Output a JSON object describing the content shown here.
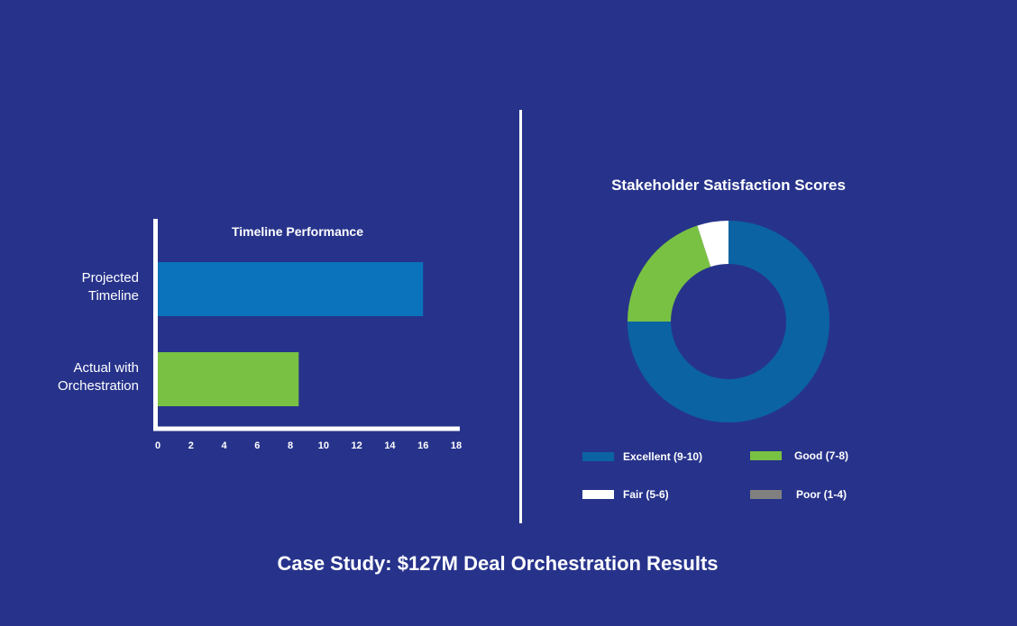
{
  "footer": {
    "title": "Case Study: $127M Deal Orchestration Results"
  },
  "colors": {
    "background": "#27338b",
    "blue": "#0a73bb",
    "dark_blue": "#0b63a3",
    "green": "#79c143",
    "white": "#ffffff",
    "gray": "#808080"
  },
  "chart_data": [
    {
      "type": "bar",
      "orientation": "horizontal",
      "title": "Timeline Performance",
      "categories": [
        "Projected\nTimeline",
        "Actual with\nOrchestration"
      ],
      "values": [
        16,
        8.5
      ],
      "bar_colors": [
        "#0a73bb",
        "#79c143"
      ],
      "xlim": [
        0,
        18
      ],
      "xticks": [
        0,
        2,
        4,
        6,
        8,
        10,
        12,
        14,
        16,
        18
      ],
      "grid": false,
      "xlabel": "",
      "ylabel": ""
    },
    {
      "type": "pie",
      "donut": true,
      "title": "Stakeholder Satisfaction Scores",
      "labels": [
        "Excellent (9-10)",
        "Good (7-8)",
        "Fair (5-6)",
        "Poor (1-4)"
      ],
      "values": [
        75,
        20,
        5,
        0
      ],
      "colors": [
        "#0b63a3",
        "#79c143",
        "#ffffff",
        "#808080"
      ],
      "legend_position": "bottom"
    }
  ]
}
